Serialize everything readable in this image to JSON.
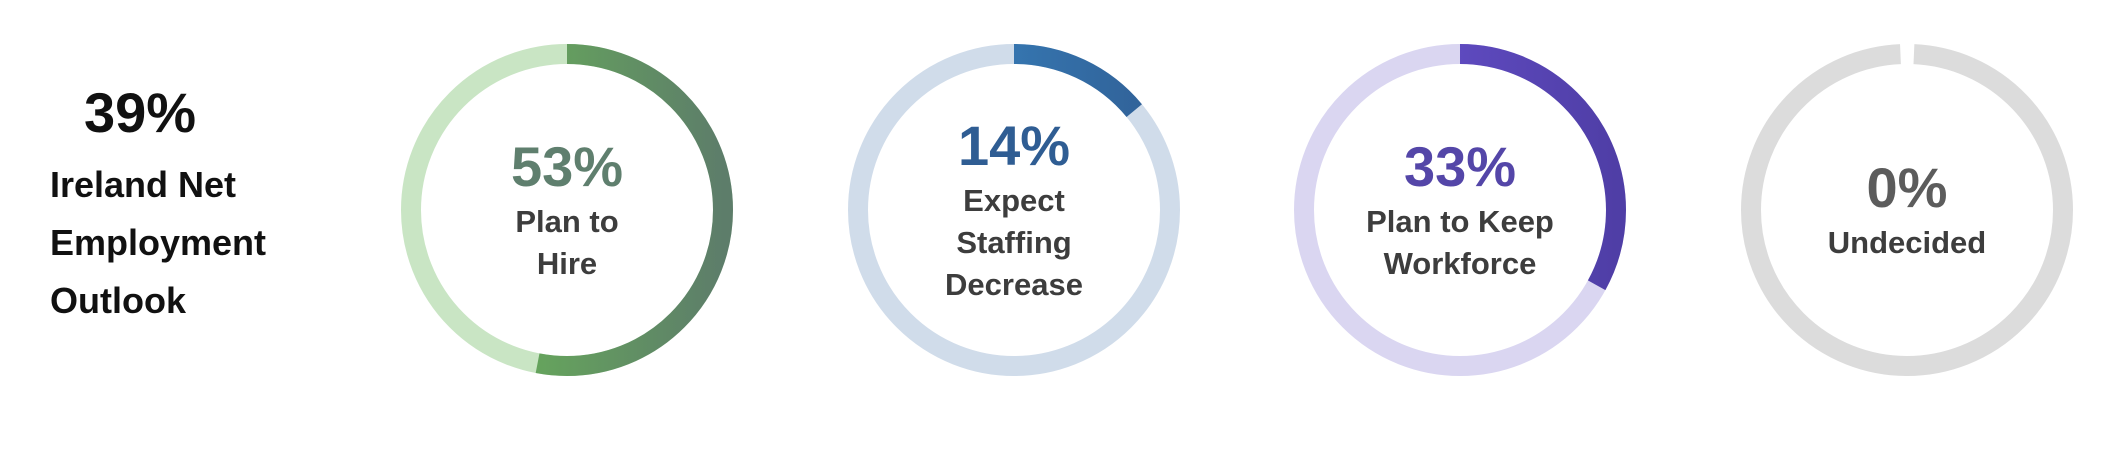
{
  "chart_data": {
    "type": "pie",
    "net_outlook": {
      "value": "39%",
      "label": "Ireland Net Employment Outlook"
    },
    "items": [
      {
        "value": 53,
        "value_label": "53%",
        "label": "Plan to\nHire",
        "colors": {
          "track": "#c9e5c4",
          "start": "#6bbd54",
          "end": "#5d7d6a",
          "value_text": "#5f7f6e"
        }
      },
      {
        "value": 14,
        "value_label": "14%",
        "label": "Expect\nStaffing\nDecrease",
        "colors": {
          "track": "#d0dcea",
          "start": "#3a8ac8",
          "end": "#305f95",
          "value_text": "#2f5d93"
        }
      },
      {
        "value": 33,
        "value_label": "33%",
        "label": "Plan to Keep\nWorkforce",
        "colors": {
          "track": "#dad6f1",
          "start": "#6c55d6",
          "end": "#4f3ea6",
          "value_text": "#5446a8"
        }
      },
      {
        "value": 0,
        "value_label": "0%",
        "label": "Undecided",
        "colors": {
          "track": "#dcdcdc",
          "start": "#bbbbbb",
          "end": "#999999",
          "value_text": "#5c5c5c"
        }
      }
    ]
  }
}
